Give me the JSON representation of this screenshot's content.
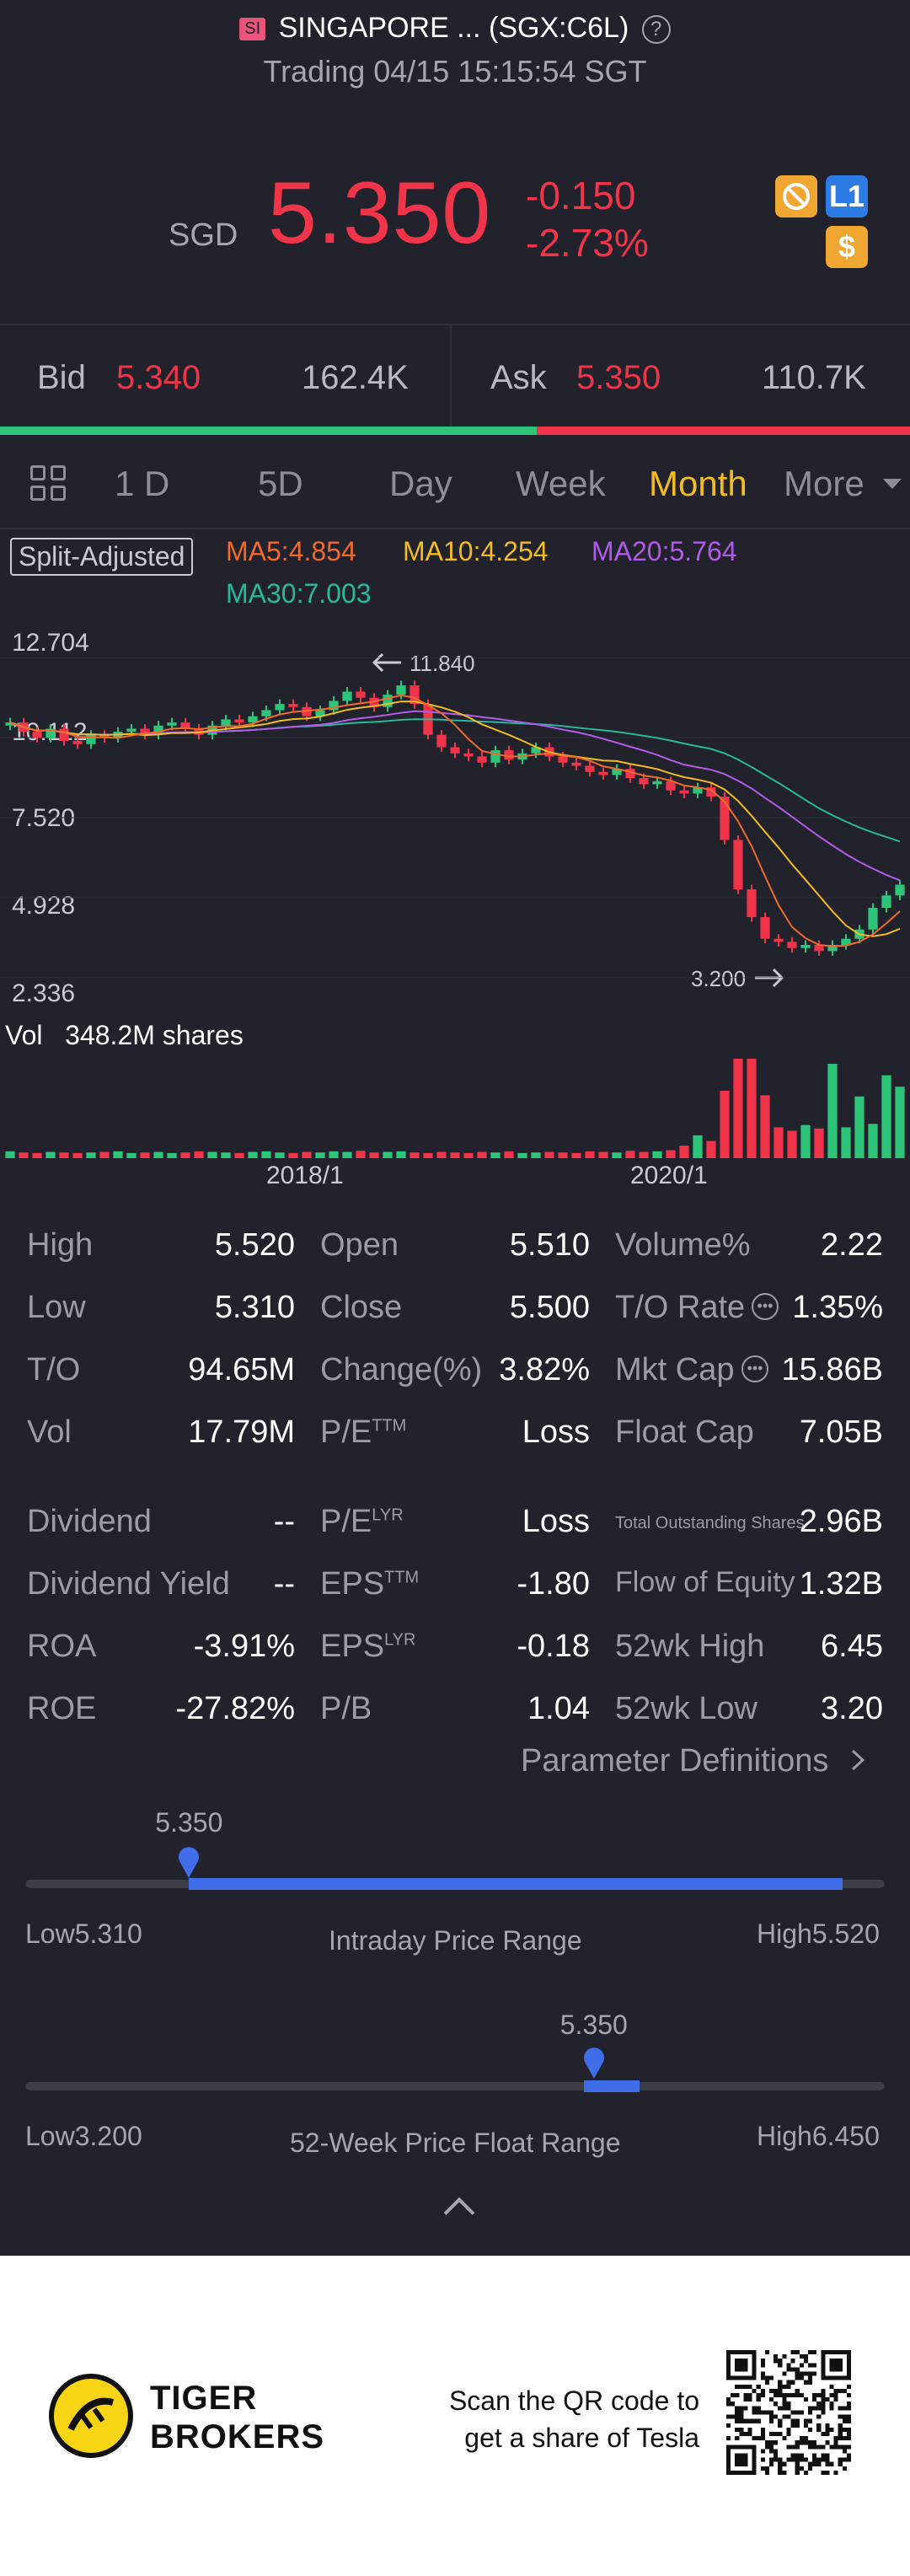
{
  "header": {
    "badge": "SI",
    "title": "SINGAPORE ... (SGX:C6L)",
    "help_glyph": "?",
    "status": "Trading 04/15 15:15:54 SGT",
    "currency": "SGD",
    "price": "5.350",
    "change": "-0.150",
    "change_pct": "-2.73%",
    "badges": [
      "L1",
      "$"
    ]
  },
  "bidask": {
    "bid_label": "Bid",
    "bid_price": "5.340",
    "bid_size": "162.4K",
    "ask_label": "Ask",
    "ask_price": "5.350",
    "ask_size": "110.7K",
    "bid_share": 0.59
  },
  "tabs": [
    "1 D",
    "5D",
    "Day",
    "Week",
    "Month",
    "More"
  ],
  "active_tab": "Month",
  "ma_legend": {
    "split": "Split-Adjusted",
    "ma5": "MA5:4.854",
    "ma10": "MA10:4.254",
    "ma20": "MA20:5.764",
    "ma30": "MA30:7.003",
    "colors": {
      "ma5": "#f06a2c",
      "ma10": "#f2bc22",
      "ma20": "#b25be8",
      "ma30": "#2ab89a"
    }
  },
  "chart_data": {
    "type": "candlestick",
    "y_ticks": [
      "12.704",
      "10.112",
      "7.520",
      "4.928",
      "2.336"
    ],
    "ylim": [
      2.336,
      12.704
    ],
    "x_ticks": [
      "2018/1",
      "2020/1"
    ],
    "max_label": "11.840",
    "min_label": "3.200",
    "closes": [
      10.6,
      10.3,
      10.1,
      10.4,
      10.0,
      9.9,
      10.2,
      10.1,
      10.3,
      10.4,
      10.2,
      10.5,
      10.6,
      10.4,
      10.2,
      10.5,
      10.7,
      10.6,
      10.8,
      11.0,
      11.2,
      11.1,
      10.8,
      11.0,
      11.3,
      11.6,
      11.4,
      11.1,
      11.5,
      11.8,
      11.2,
      10.2,
      9.8,
      9.6,
      9.5,
      9.3,
      9.7,
      9.4,
      9.6,
      9.8,
      9.5,
      9.3,
      9.2,
      9.0,
      8.9,
      9.1,
      8.8,
      8.6,
      8.7,
      8.4,
      8.3,
      8.5,
      8.2,
      6.8,
      5.2,
      4.3,
      3.6,
      3.5,
      3.3,
      3.4,
      3.2,
      3.4,
      3.6,
      3.9,
      4.6,
      5.0,
      5.35
    ],
    "volume_label": "Vol",
    "volume_value": "348.2M shares",
    "volumes": [
      12,
      10,
      9,
      11,
      10,
      9,
      10,
      11,
      12,
      9,
      10,
      11,
      9,
      10,
      12,
      11,
      10,
      9,
      11,
      12,
      10,
      9,
      11,
      10,
      12,
      11,
      13,
      10,
      11,
      12,
      10,
      9,
      11,
      10,
      9,
      11,
      10,
      12,
      9,
      10,
      11,
      10,
      9,
      12,
      11,
      10,
      13,
      11,
      12,
      14,
      22,
      40,
      30,
      118,
      174,
      174,
      110,
      54,
      48,
      58,
      52,
      165,
      54,
      108,
      60,
      145,
      125
    ]
  },
  "stats": [
    [
      [
        "High",
        "5.520"
      ],
      [
        "Open",
        "5.510"
      ],
      [
        "Volume%",
        "2.22"
      ]
    ],
    [
      [
        "Low",
        "5.310"
      ],
      [
        "Close",
        "5.500"
      ],
      [
        "T/O Rate",
        "1.35%"
      ]
    ],
    [
      [
        "T/O",
        "94.65M"
      ],
      [
        "Change(%)",
        "3.82%"
      ],
      [
        "Mkt Cap",
        "15.86B"
      ]
    ],
    [
      [
        "Vol",
        "17.79M"
      ],
      [
        "P/E",
        "Loss"
      ],
      [
        "Float Cap",
        "7.05B"
      ]
    ],
    [
      [
        "Dividend",
        "--"
      ],
      [
        "P/E",
        "Loss"
      ],
      [
        "Total Outstanding Shares",
        "2.96B"
      ]
    ],
    [
      [
        "Dividend Yield",
        "--"
      ],
      [
        "EPS",
        "-1.80"
      ],
      [
        "Flow of Equity",
        "1.32B"
      ]
    ],
    [
      [
        "ROA",
        "-3.91%"
      ],
      [
        "EPS",
        "-0.18"
      ],
      [
        "52wk High",
        "6.45"
      ]
    ],
    [
      [
        "ROE",
        "-27.82%"
      ],
      [
        "P/B",
        "1.04"
      ],
      [
        "52wk Low",
        "3.20"
      ]
    ]
  ],
  "superscripts": {
    "ttm": "TTM",
    "lyr": "LYR"
  },
  "param_link": "Parameter Definitions",
  "intraday": {
    "current": "5.350",
    "low_label": "Low5.310",
    "title": "Intraday Price Range",
    "high_label": "High5.520",
    "low": 5.31,
    "high": 5.52,
    "value": 5.35
  },
  "week52": {
    "current": "5.350",
    "low_label": "Low3.200",
    "title": "52-Week Price Float Range",
    "high_label": "High6.450",
    "low": 3.2,
    "high": 6.45,
    "value": 5.35
  },
  "footer": {
    "brand_line1": "TIGER",
    "brand_line2": "BROKERS",
    "scan_line1": "Scan the QR code to",
    "scan_line2": "get a share of Tesla"
  }
}
